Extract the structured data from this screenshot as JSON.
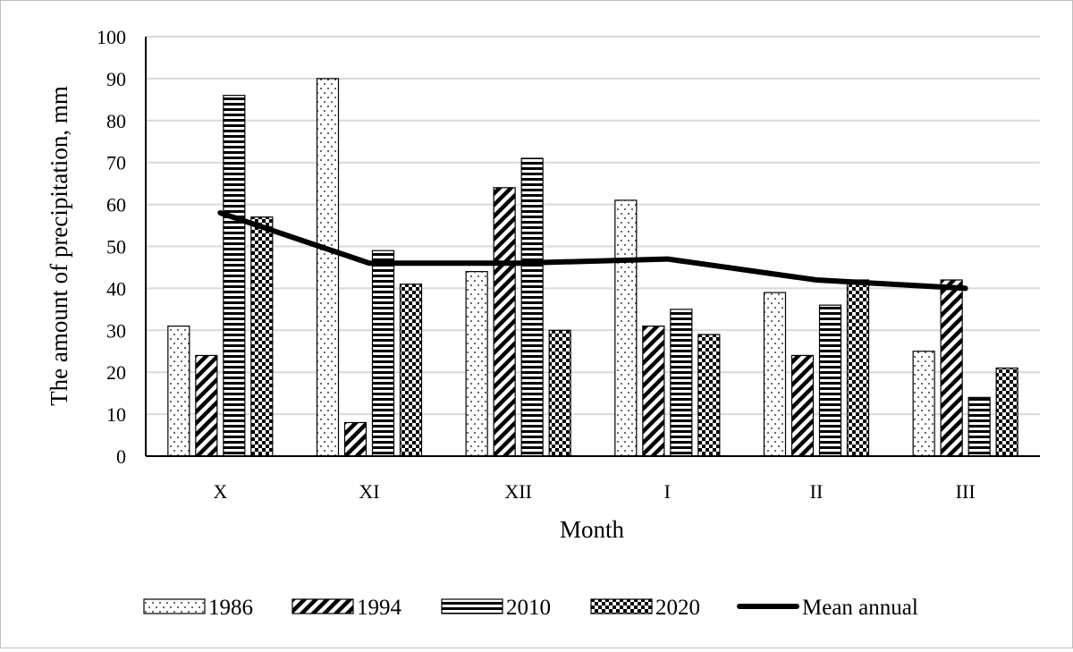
{
  "chart_data": {
    "type": "bar",
    "title": "",
    "xlabel": "Month",
    "ylabel": "The amount of precipitation, mm",
    "ylim": [
      0,
      100
    ],
    "yticks": [
      0,
      10,
      20,
      30,
      40,
      50,
      60,
      70,
      80,
      90,
      100
    ],
    "grid": true,
    "legend_position": "bottom",
    "categories": [
      "X",
      "XI",
      "XII",
      "I",
      "II",
      "III"
    ],
    "series": [
      {
        "name": "1986",
        "type": "bar",
        "pattern": "dots",
        "values": [
          31,
          90,
          44,
          61,
          39,
          25
        ]
      },
      {
        "name": "1994",
        "type": "bar",
        "pattern": "diagonal",
        "values": [
          24,
          8,
          64,
          31,
          24,
          42
        ]
      },
      {
        "name": "2010",
        "type": "bar",
        "pattern": "horizontal",
        "values": [
          86,
          49,
          71,
          35,
          36,
          14
        ]
      },
      {
        "name": "2020",
        "type": "bar",
        "pattern": "checker",
        "values": [
          57,
          41,
          30,
          29,
          42,
          21
        ]
      },
      {
        "name": "Mean annual",
        "type": "line",
        "values": [
          58,
          46,
          46,
          47,
          42,
          40
        ]
      }
    ],
    "colors": {
      "bar_stroke": "#000000",
      "line": "#000000",
      "grid": "#d9d9d9"
    }
  }
}
